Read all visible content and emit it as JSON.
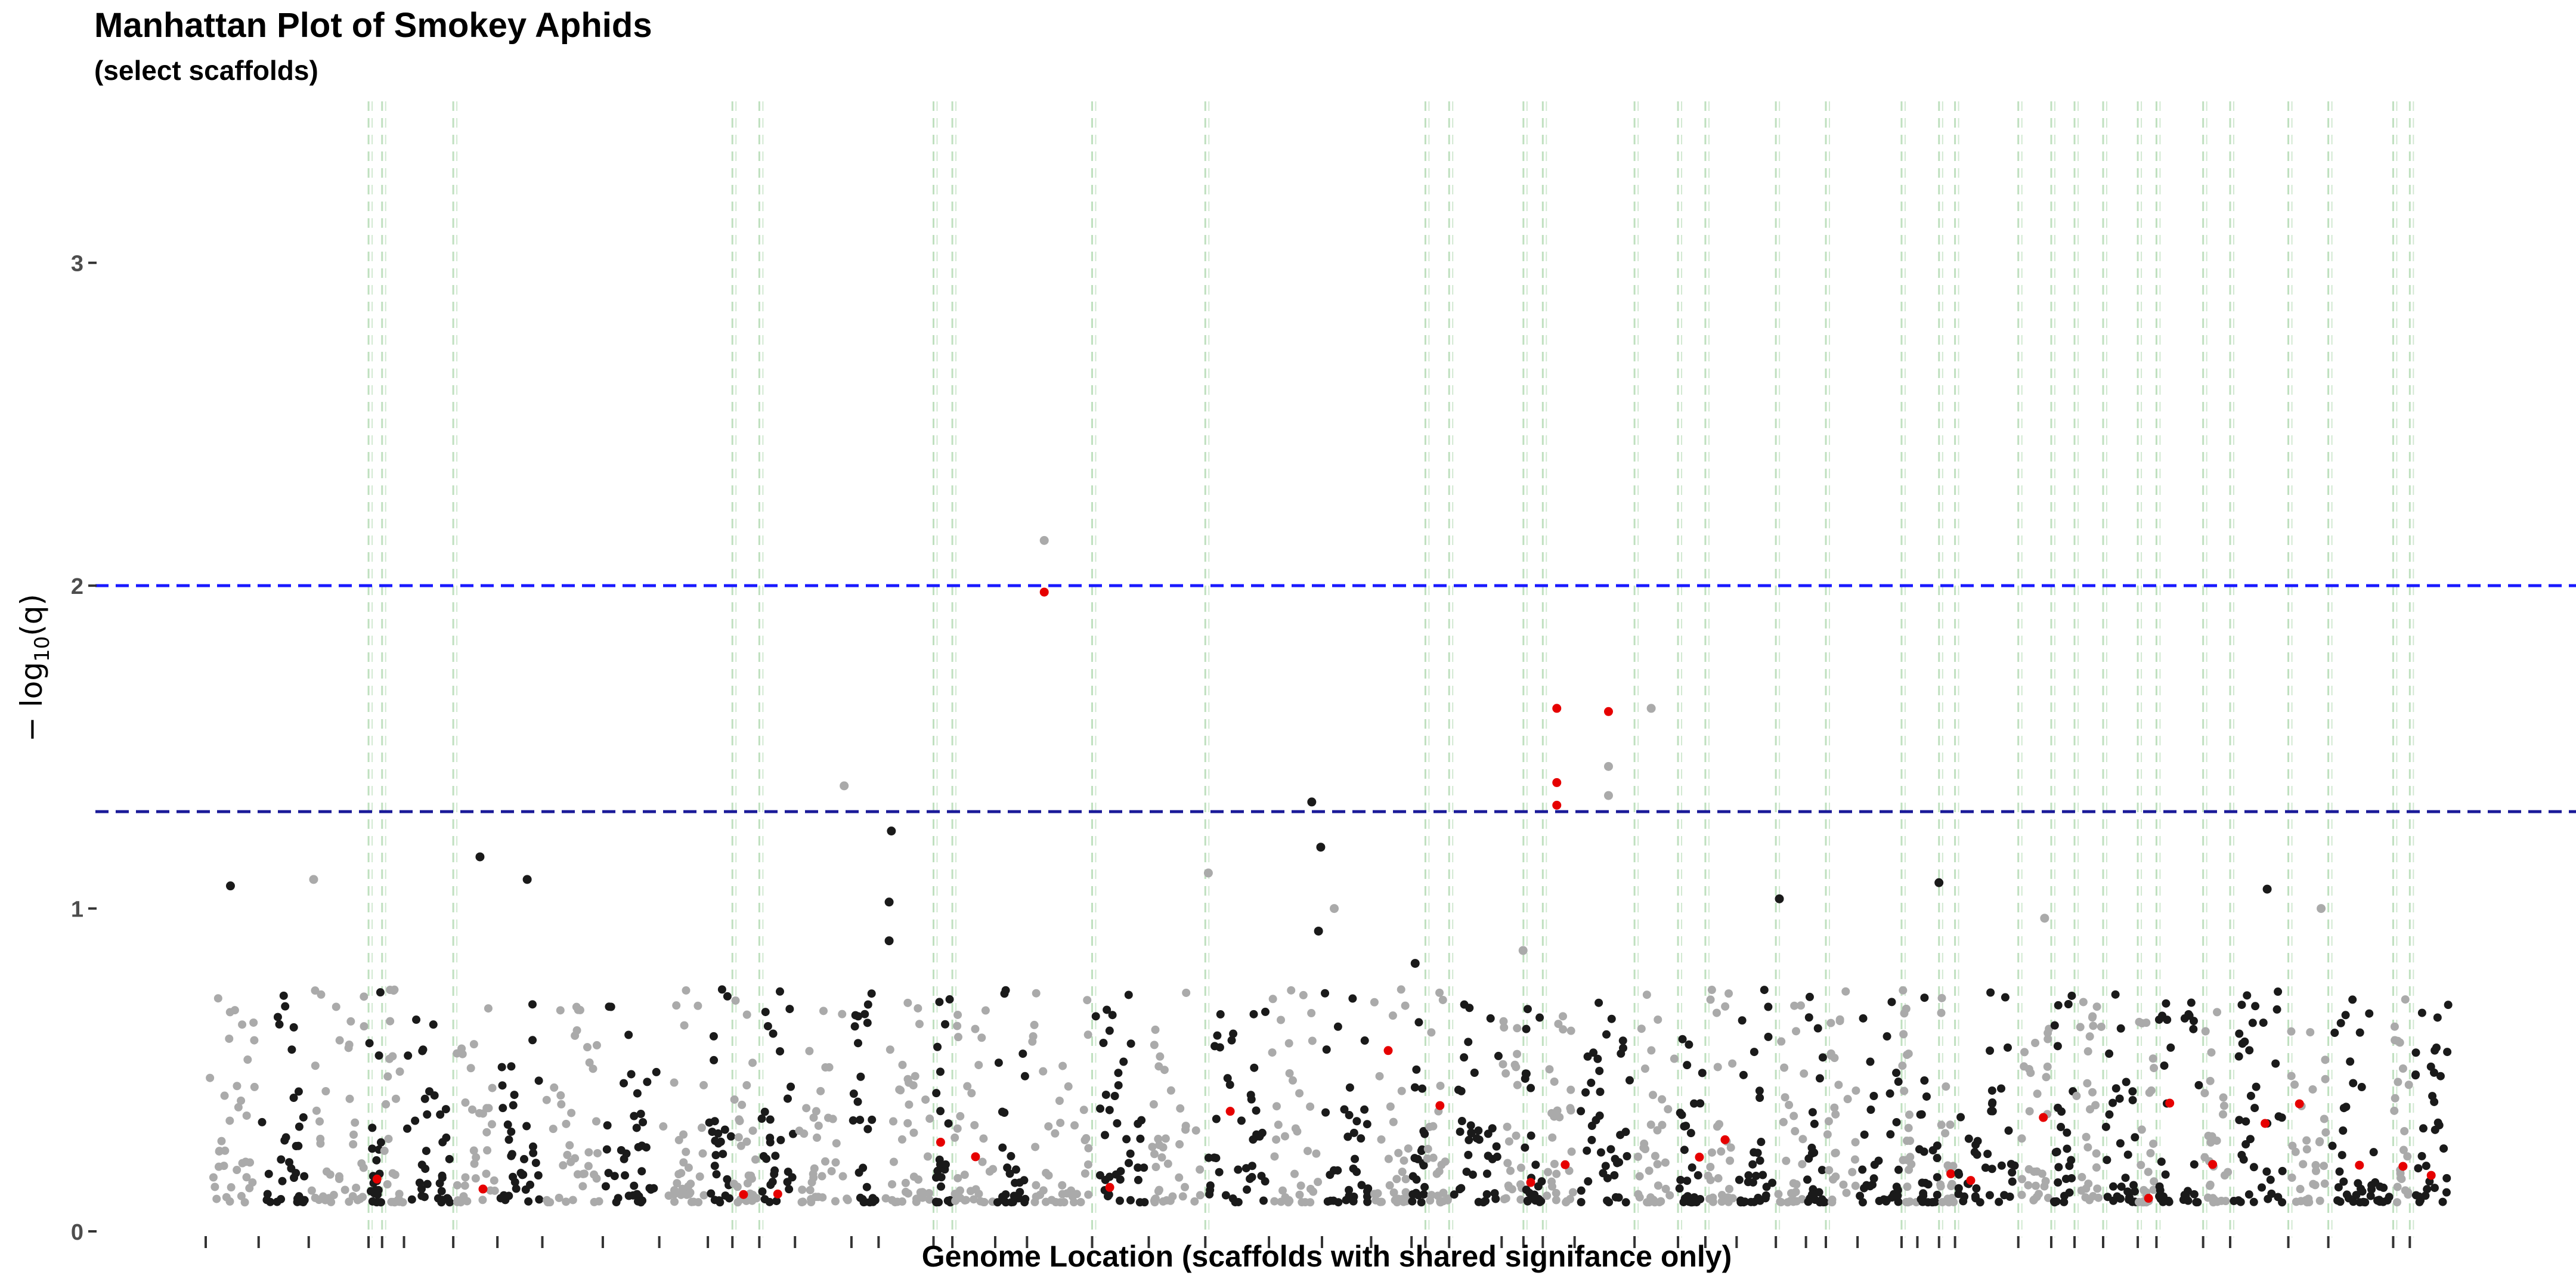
{
  "chart_data": {
    "type": "scatter",
    "title": "Manhattan Plot of Smokey Aphids",
    "subtitle": "(select scaffolds)",
    "xlabel": "Genome Location (scaffolds with shared signifance only)",
    "ylabel": {
      "prefix": "− log",
      "subscript": "10",
      "suffix": "(q)"
    },
    "ylim": [
      0,
      3.5
    ],
    "y_ticks": [
      0,
      1,
      2,
      3
    ],
    "grid": false,
    "thresholds": [
      {
        "y": 2.0,
        "color": "#1a1aff",
        "style": "dashed"
      },
      {
        "y": 1.3,
        "color": "#1a1a99",
        "style": "dashed"
      }
    ],
    "colors": {
      "alternate_a": "#aaaaaa",
      "alternate_b": "#1a1a1a",
      "highlight": "#e60000",
      "scaffold_line": "#bfe0bf",
      "tick": "#333333"
    },
    "n_scaffolds": 58,
    "highlight_scaffolds": [
      3,
      4,
      6,
      12,
      13,
      17,
      18,
      21,
      23,
      28,
      29,
      31,
      32,
      34,
      35,
      36,
      38,
      40,
      42,
      44,
      45,
      46,
      47,
      48,
      49,
      50,
      51,
      52,
      53,
      54,
      55,
      56,
      57
    ],
    "notable_points": [
      {
        "x": 0.373,
        "y": 2.14,
        "color": "gray"
      },
      {
        "x": 0.373,
        "y": 1.98,
        "color": "red"
      },
      {
        "x": 0.601,
        "y": 1.62,
        "color": "red"
      },
      {
        "x": 0.624,
        "y": 1.61,
        "color": "red"
      },
      {
        "x": 0.643,
        "y": 1.62,
        "color": "gray"
      },
      {
        "x": 0.624,
        "y": 1.44,
        "color": "gray"
      },
      {
        "x": 0.601,
        "y": 1.39,
        "color": "red"
      },
      {
        "x": 0.624,
        "y": 1.35,
        "color": "gray"
      },
      {
        "x": 0.284,
        "y": 1.38,
        "color": "gray"
      },
      {
        "x": 0.492,
        "y": 1.33,
        "color": "black"
      },
      {
        "x": 0.601,
        "y": 1.32,
        "color": "red"
      },
      {
        "x": 0.305,
        "y": 1.24,
        "color": "black"
      },
      {
        "x": 0.496,
        "y": 1.19,
        "color": "black"
      },
      {
        "x": 0.122,
        "y": 1.16,
        "color": "black"
      },
      {
        "x": 0.048,
        "y": 1.09,
        "color": "gray"
      },
      {
        "x": 0.143,
        "y": 1.09,
        "color": "black"
      },
      {
        "x": 0.011,
        "y": 1.07,
        "color": "black"
      },
      {
        "x": 0.446,
        "y": 1.11,
        "color": "gray"
      },
      {
        "x": 0.771,
        "y": 1.08,
        "color": "black"
      },
      {
        "x": 0.917,
        "y": 1.06,
        "color": "black"
      },
      {
        "x": 0.304,
        "y": 1.02,
        "color": "black"
      },
      {
        "x": 0.7,
        "y": 1.03,
        "color": "black"
      },
      {
        "x": 0.502,
        "y": 1.0,
        "color": "gray"
      },
      {
        "x": 0.941,
        "y": 1.0,
        "color": "gray"
      },
      {
        "x": 0.818,
        "y": 0.97,
        "color": "gray"
      },
      {
        "x": 0.495,
        "y": 0.93,
        "color": "black"
      },
      {
        "x": 0.304,
        "y": 0.9,
        "color": "black"
      },
      {
        "x": 0.538,
        "y": 0.83,
        "color": "black"
      },
      {
        "x": 0.586,
        "y": 0.87,
        "color": "gray"
      },
      {
        "x": 0.526,
        "y": 0.56,
        "color": "red"
      }
    ],
    "bulk_points_per_scaffold": 26,
    "bulk_y_range": [
      0.09,
      0.75
    ]
  }
}
